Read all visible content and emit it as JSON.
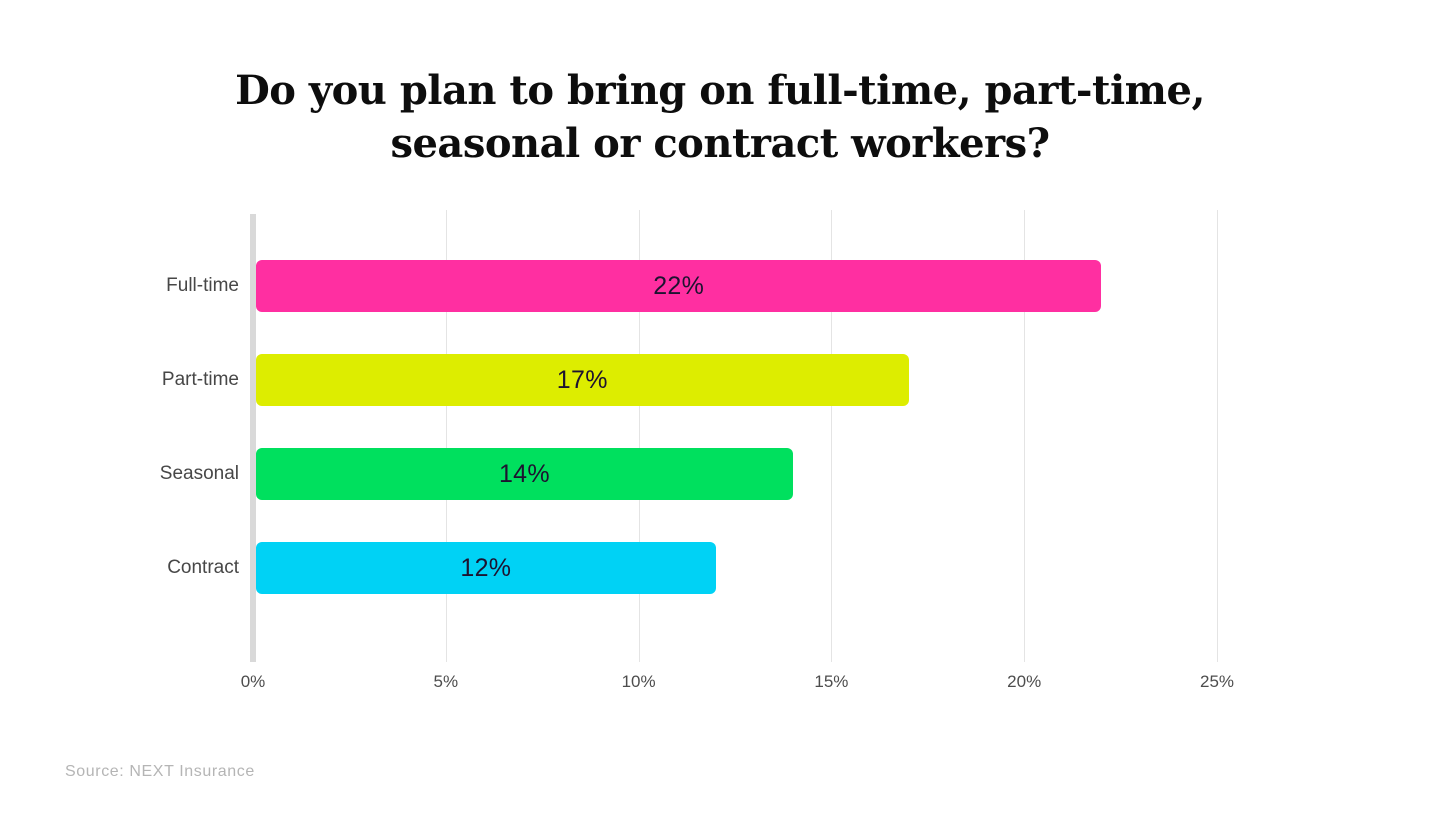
{
  "chart_data": {
    "type": "bar",
    "orientation": "horizontal",
    "title": "Do you plan to bring on full-time, part-time, seasonal or contract workers?",
    "title_lines": [
      "Do you plan to bring on full-time, part-time,",
      "seasonal or contract workers?"
    ],
    "categories": [
      "Full-time",
      "Part-time",
      "Seasonal",
      "Contract"
    ],
    "values": [
      22,
      17,
      14,
      12
    ],
    "value_labels": [
      "22%",
      "17%",
      "14%",
      "12%"
    ],
    "bar_colors": [
      "#ff2fa1",
      "#dded00",
      "#00e05e",
      "#00d2f5"
    ],
    "xlabel": "",
    "ylabel": "",
    "xlim": [
      0,
      25
    ],
    "x_ticks": [
      {
        "value": 0,
        "label": "0%"
      },
      {
        "value": 5,
        "label": "5%"
      },
      {
        "value": 10,
        "label": "10%"
      },
      {
        "value": 15,
        "label": "15%"
      },
      {
        "value": 20,
        "label": "20%"
      },
      {
        "value": 25,
        "label": "25%"
      }
    ],
    "grid": true,
    "legend": false
  },
  "colors": {
    "background": "#ffffff",
    "gridline": "#e4e4e4",
    "axis_line": "#d9d9d9",
    "value_text": "#1d1330",
    "category_text": "#474747",
    "tick_text": "#4d4d4d",
    "title_text": "#0d0d0d",
    "source_text": "#b5b5b5"
  },
  "source": {
    "label": "Source: NEXT Insurance"
  }
}
